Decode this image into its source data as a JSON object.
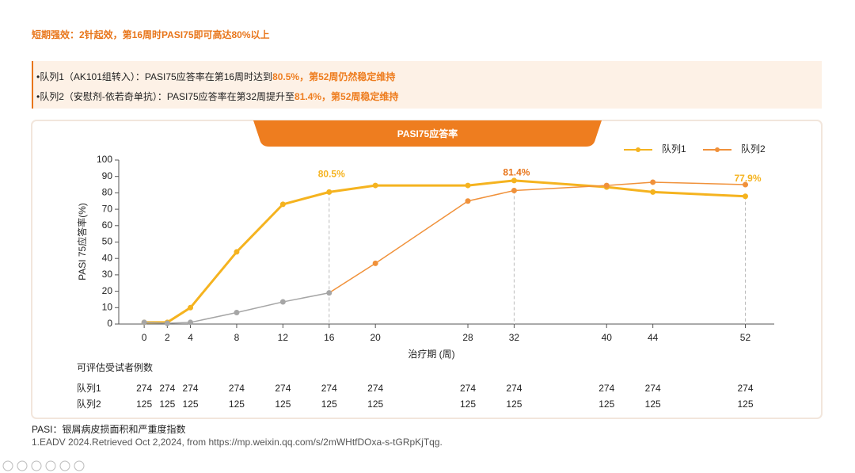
{
  "title": "短期强效：2针起效，第16周时PASI75即可高达80%以上",
  "bullets": [
    {
      "text": "•队列1（AK101组转入）：PASI75应答率在第16周时达到",
      "highlight": "80.5%，第52周仍然稳定维持"
    },
    {
      "text": "•队列2（安慰剂-依若奇单抗）：PASI75应答率在第32周提升至",
      "highlight": "81.4%，第52周稳定维持"
    }
  ],
  "chart_data": {
    "type": "line",
    "title": "PASI75应答率",
    "x_label": "治疗期 (周)",
    "y_label": "PASI 75应答率(%)",
    "x": [
      0,
      2,
      4,
      8,
      12,
      16,
      20,
      28,
      32,
      40,
      44,
      52
    ],
    "xlim": [
      -2.2,
      54.5
    ],
    "xticks": [
      0,
      2,
      4,
      8,
      12,
      16,
      20,
      28,
      32,
      40,
      44,
      52
    ],
    "ylim": [
      0,
      100
    ],
    "yticks": [
      0,
      10,
      20,
      30,
      40,
      50,
      60,
      70,
      80,
      90,
      100
    ],
    "legend": "top-right",
    "series": [
      {
        "name": "队列1",
        "color": "#f5b31f",
        "label_color": "#f5b31f",
        "values": [
          1,
          1,
          10,
          44,
          73,
          80.5,
          84.5,
          84.5,
          87.5,
          83.5,
          80.5,
          77.9
        ],
        "value_labels": [
          null,
          null,
          null,
          null,
          null,
          "80.5%",
          null,
          null,
          null,
          null,
          null,
          "77.9%"
        ]
      },
      {
        "name": "队列2",
        "color": "#f0913a",
        "label_color": "#e8751a",
        "point_colors": [
          "#a6a6a6",
          "#a6a6a6",
          "#a6a6a6",
          "#a6a6a6",
          "#a6a6a6",
          "#a6a6a6",
          "#f0913a",
          "#f0913a",
          "#f0913a",
          "#f0913a",
          "#f0913a",
          "#f0913a"
        ],
        "values": [
          1,
          0.5,
          1,
          7,
          13.5,
          19,
          37,
          75,
          81.4,
          84.5,
          86.5,
          85
        ],
        "value_labels": [
          null,
          null,
          null,
          null,
          null,
          null,
          null,
          null,
          "81.4%",
          null,
          null,
          null
        ]
      }
    ],
    "table": {
      "title": "可评估受试者例数",
      "rows": [
        {
          "label": "队列1",
          "values": [
            274,
            274,
            274,
            274,
            274,
            274,
            274,
            274,
            274,
            274,
            274,
            274
          ]
        },
        {
          "label": "队列2",
          "values": [
            125,
            125,
            125,
            125,
            125,
            125,
            125,
            125,
            125,
            125,
            125,
            125
          ]
        }
      ]
    }
  },
  "footnotes": [
    "PASI：银屑病皮损面积和严重度指数",
    "1.EADV 2024.Retrieved Oct 2,2024, from https://mp.weixin.qq.com/s/2mWHtfDOxa-s-tGRpKjTqg."
  ]
}
